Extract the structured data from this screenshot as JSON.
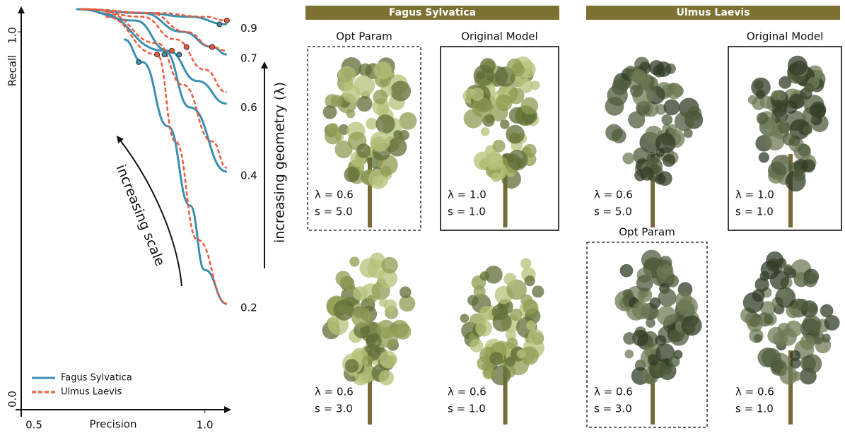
{
  "chart_data": {
    "type": "line",
    "xlabel": "Precision",
    "ylabel": "Recall",
    "xlim": [
      0.5,
      1.07
    ],
    "xticks": [
      {
        "value": 0.5,
        "label": "0.5"
      },
      {
        "value": 1,
        "label": "1.0"
      }
    ],
    "ylim": [
      0,
      1.06
    ],
    "yticks": [
      {
        "value": 0,
        "label": "0.0"
      },
      {
        "value": 1,
        "label": "1.0"
      }
    ],
    "legend": "lower left",
    "curve_labels": [
      "0.9",
      "0.7",
      "0.6",
      "0.4",
      "0.2"
    ],
    "annotations": [
      "increasing scale",
      "increasing geometry (λ)"
    ],
    "series": [
      {
        "name": "Fagus Sylvatica",
        "color": "#3b8fb0",
        "dashed": false,
        "curves": [
          {
            "x": [
              0.65,
              0.83,
              0.96,
              1.06
            ],
            "y": [
              1.06,
              1.05,
              1.04,
              1.02
            ],
            "marker": [
              1.04,
              1.02
            ]
          },
          {
            "x": [
              0.65,
              0.83,
              0.94,
              1.02,
              1.06
            ],
            "y": [
              1.06,
              1.05,
              1.0,
              0.96,
              0.94
            ],
            "marker": [
              1.02,
              0.96
            ]
          },
          {
            "x": [
              0.65,
              0.81,
              0.9,
              0.98,
              1.06
            ],
            "y": [
              1.06,
              1.03,
              0.95,
              0.87,
              0.81
            ],
            "marker": [
              0.93,
              0.94
            ]
          },
          {
            "x": [
              0.71,
              0.89,
              0.96,
              1.06
            ],
            "y": [
              1.05,
              0.95,
              0.8,
              0.63
            ],
            "marker": [
              0.89,
              0.94
            ]
          },
          {
            "x": [
              0.78,
              0.83,
              0.9,
              0.96,
              1.0,
              1.06
            ],
            "y": [
              0.98,
              0.92,
              0.75,
              0.54,
              0.37,
              0.28
            ],
            "marker": [
              0.82,
              0.92
            ]
          }
        ]
      },
      {
        "name": "Ulmus Laevis",
        "color": "#ef5a3c",
        "dashed": true,
        "curves": [
          {
            "x": [
              0.66,
              0.87,
              1.0,
              1.06
            ],
            "y": [
              1.06,
              1.05,
              1.04,
              1.03
            ],
            "marker": [
              1.06,
              1.03
            ]
          },
          {
            "x": [
              0.66,
              0.85,
              0.95,
              1.02,
              1.06
            ],
            "y": [
              1.06,
              1.05,
              1.0,
              0.96,
              0.95
            ],
            "marker": [
              1.02,
              0.96
            ]
          },
          {
            "x": [
              0.67,
              0.83,
              0.92,
              1.0,
              1.06
            ],
            "y": [
              1.06,
              1.04,
              0.98,
              0.9,
              0.84
            ],
            "marker": [
              0.95,
              0.96
            ]
          },
          {
            "x": [
              0.73,
              0.87,
              0.94,
              1.02,
              1.06
            ],
            "y": [
              1.05,
              0.97,
              0.86,
              0.71,
              0.64
            ],
            "marker": [
              0.91,
              0.95
            ]
          },
          {
            "x": [
              0.73,
              0.87,
              0.92,
              0.98,
              1.06
            ],
            "y": [
              1.04,
              0.94,
              0.71,
              0.45,
              0.28
            ],
            "marker": [
              0.87,
              0.94
            ]
          }
        ]
      }
    ]
  },
  "sections": [
    {
      "title": "Fagus Sylvatica",
      "panels": [
        {
          "caption": "Opt Param",
          "box": "dashed",
          "lambda": "λ = 0.6",
          "s": "s = 5.0"
        },
        {
          "caption": "Original Model",
          "box": "solid",
          "lambda": "λ = 1.0",
          "s": "s = 1.0"
        },
        {
          "lambda": "λ = 0.6",
          "s": "s = 3.0"
        },
        {
          "lambda": "λ = 0.6",
          "s": "s = 1.0"
        }
      ]
    },
    {
      "title": "Ulmus Laevis",
      "panels": [
        {
          "lambda": "λ = 0.6",
          "s": "s = 5.0"
        },
        {
          "caption": "Original Model",
          "box": "solid",
          "lambda": "λ = 1.0",
          "s": "s = 1.0"
        },
        {
          "caption": "Opt Param",
          "box": "dashed",
          "lambda": "λ = 0.6",
          "s": "s = 3.0"
        },
        {
          "lambda": "λ = 0.6",
          "s": "s = 1.0"
        }
      ]
    }
  ]
}
